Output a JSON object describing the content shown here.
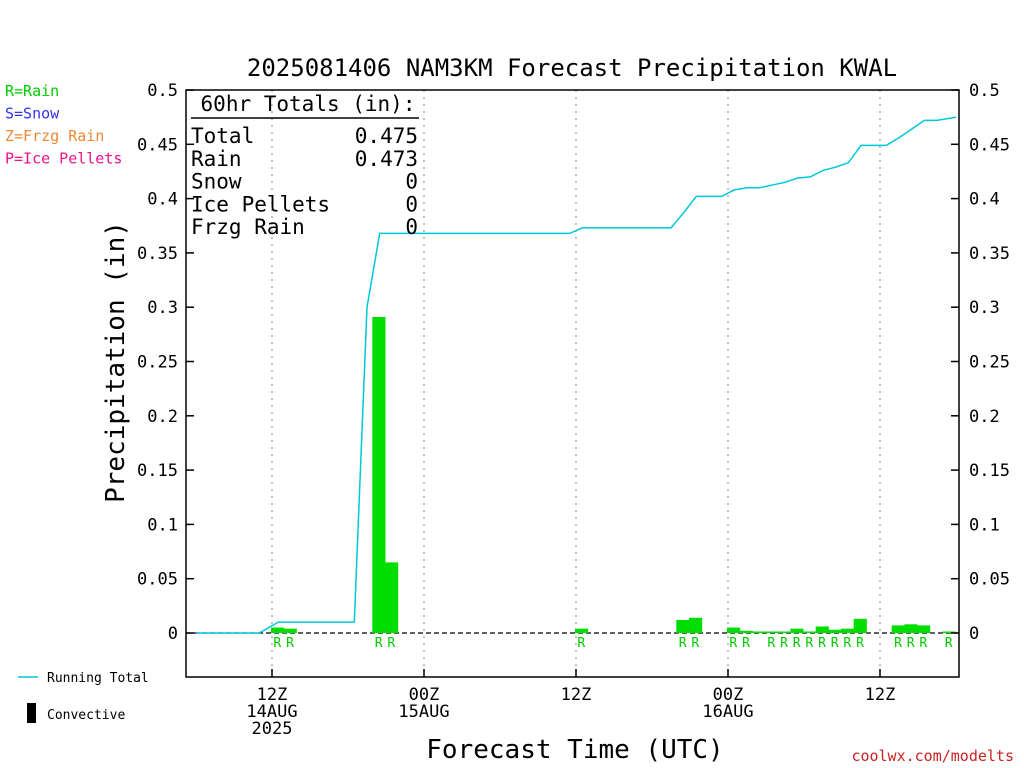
{
  "chart_data": {
    "type": "bar",
    "title": "2025081406 NAM3KM Forecast Precipitation KWAL",
    "xlabel": "Forecast Time (UTC)",
    "ylabel": "Precipitation (in)",
    "ylim": [
      -0.04,
      0.5
    ],
    "yticks": [
      "0",
      "0.05",
      "0.1",
      "0.15",
      "0.2",
      "0.25",
      "0.3",
      "0.35",
      "0.4",
      "0.45",
      "0.5"
    ],
    "x_forecast_hours_range": [
      0,
      60
    ],
    "x_ticks": [
      {
        "hour": 6,
        "line1": "12Z",
        "line2": "14AUG",
        "line3": "2025"
      },
      {
        "hour": 18,
        "line1": "00Z",
        "line2": "15AUG",
        "line3": ""
      },
      {
        "hour": 30,
        "line1": "12Z",
        "line2": "",
        "line3": ""
      },
      {
        "hour": 42,
        "line1": "00Z",
        "line2": "16AUG",
        "line3": ""
      },
      {
        "hour": 54,
        "line1": "12Z",
        "line2": "",
        "line3": ""
      }
    ],
    "ptype_legend": [
      {
        "label": "R=Rain",
        "color": "#00cc00"
      },
      {
        "label": "S=Snow",
        "color": "#3333ee"
      },
      {
        "label": "Z=Frzg Rain",
        "color": "#ee8833"
      },
      {
        "label": "P=Ice Pellets",
        "color": "#ee1188"
      }
    ],
    "series_legend": [
      {
        "label": "Running Total",
        "color": "#00c8d8"
      },
      {
        "label": "Convective",
        "color": "#000000"
      }
    ],
    "totals": {
      "header": "60hr Totals (in):",
      "rows": [
        {
          "label": "Total",
          "value": "0.475"
        },
        {
          "label": "Rain",
          "value": "0.473"
        },
        {
          "label": "Snow",
          "value": "0"
        },
        {
          "label": "Ice Pellets",
          "value": "0"
        },
        {
          "label": "Frzg Rain",
          "value": "0"
        }
      ]
    },
    "bar_color": "#00dd00",
    "line_color": "#00c8d8",
    "bars": [
      {
        "hour": 6,
        "value": 0.005,
        "ptype": "R"
      },
      {
        "hour": 7,
        "value": 0.004,
        "ptype": "R"
      },
      {
        "hour": 14,
        "value": 0.291,
        "ptype": "R"
      },
      {
        "hour": 15,
        "value": 0.065,
        "ptype": "R"
      },
      {
        "hour": 30,
        "value": 0.004,
        "ptype": "R"
      },
      {
        "hour": 38,
        "value": 0.012,
        "ptype": "R"
      },
      {
        "hour": 39,
        "value": 0.014,
        "ptype": "R"
      },
      {
        "hour": 42,
        "value": 0.005,
        "ptype": "R"
      },
      {
        "hour": 43,
        "value": 0.002,
        "ptype": "R"
      },
      {
        "hour": 44,
        "value": 0.0005,
        "ptype": ""
      },
      {
        "hour": 45,
        "value": 0.001,
        "ptype": "R"
      },
      {
        "hour": 46,
        "value": 0.001,
        "ptype": "R"
      },
      {
        "hour": 47,
        "value": 0.004,
        "ptype": "R"
      },
      {
        "hour": 48,
        "value": 0.001,
        "ptype": "R"
      },
      {
        "hour": 49,
        "value": 0.006,
        "ptype": "R"
      },
      {
        "hour": 50,
        "value": 0.003,
        "ptype": "R"
      },
      {
        "hour": 51,
        "value": 0.004,
        "ptype": "R"
      },
      {
        "hour": 52,
        "value": 0.013,
        "ptype": "R"
      },
      {
        "hour": 55,
        "value": 0.007,
        "ptype": "R"
      },
      {
        "hour": 56,
        "value": 0.008,
        "ptype": "R"
      },
      {
        "hour": 57,
        "value": 0.007,
        "ptype": "R"
      },
      {
        "hour": 59,
        "value": 0.001,
        "ptype": "R"
      }
    ],
    "running_total": [
      {
        "hour": 0,
        "value": 0
      },
      {
        "hour": 5,
        "value": 0
      },
      {
        "hour": 6.5,
        "value": 0.01
      },
      {
        "hour": 12.5,
        "value": 0.01
      },
      {
        "hour": 13.5,
        "value": 0.3
      },
      {
        "hour": 14.5,
        "value": 0.368
      },
      {
        "hour": 15.5,
        "value": 0.368
      },
      {
        "hour": 29.5,
        "value": 0.368
      },
      {
        "hour": 30.5,
        "value": 0.373
      },
      {
        "hour": 37.5,
        "value": 0.373
      },
      {
        "hour": 38.5,
        "value": 0.387
      },
      {
        "hour": 39.5,
        "value": 0.402
      },
      {
        "hour": 41.5,
        "value": 0.402
      },
      {
        "hour": 42.5,
        "value": 0.408
      },
      {
        "hour": 43.5,
        "value": 0.41
      },
      {
        "hour": 44.5,
        "value": 0.41
      },
      {
        "hour": 46.5,
        "value": 0.415
      },
      {
        "hour": 47.5,
        "value": 0.419
      },
      {
        "hour": 48.5,
        "value": 0.42
      },
      {
        "hour": 49.5,
        "value": 0.426
      },
      {
        "hour": 50.5,
        "value": 0.429
      },
      {
        "hour": 51.5,
        "value": 0.433
      },
      {
        "hour": 52.5,
        "value": 0.449
      },
      {
        "hour": 54.5,
        "value": 0.449
      },
      {
        "hour": 55.5,
        "value": 0.456
      },
      {
        "hour": 56.5,
        "value": 0.464
      },
      {
        "hour": 57.5,
        "value": 0.472
      },
      {
        "hour": 58.5,
        "value": 0.472
      },
      {
        "hour": 59.5,
        "value": 0.474
      },
      {
        "hour": 60,
        "value": 0.475
      }
    ],
    "grid": "vertical-dotted",
    "credit": "coolwx.com/modelts"
  }
}
